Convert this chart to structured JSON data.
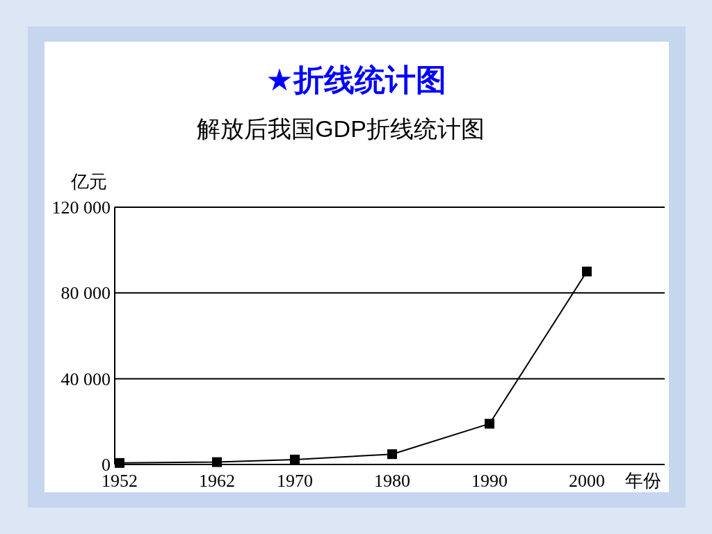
{
  "chart_data": {
    "type": "line",
    "title": "★折线统计图",
    "subtitle": "解放后我国GDP折线统计图",
    "xlabel": "年份",
    "ylabel": "亿元",
    "x": [
      1952,
      1962,
      1970,
      1980,
      1990,
      2000
    ],
    "series": [
      {
        "color": "#000000",
        "values": [
          700,
          1100,
          2300,
          4800,
          19000,
          90000
        ]
      }
    ],
    "xlim": [
      1951.5,
      2008
    ],
    "xticks": [
      1952,
      1962,
      1970,
      1980,
      1990,
      2000
    ],
    "ylim": [
      0,
      120000
    ],
    "yticks": [
      {
        "value": 0,
        "label": "0"
      },
      {
        "value": 40000,
        "label": "40 000"
      },
      {
        "value": 80000,
        "label": "80 000"
      },
      {
        "value": 120000,
        "label": "120 000"
      }
    ],
    "grid": "y",
    "marker": "square",
    "line_style": "solid"
  }
}
